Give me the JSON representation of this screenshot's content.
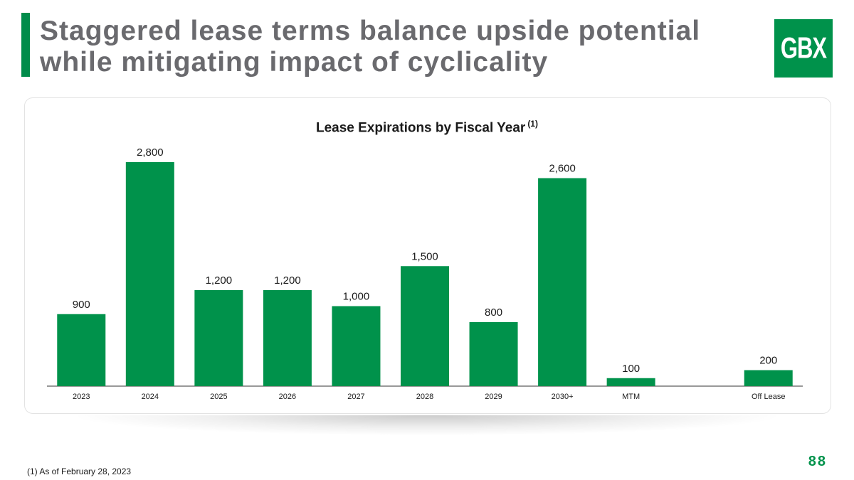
{
  "header": {
    "title_line1": "Staggered lease terms balance upside potential",
    "title_line2": "while mitigating impact of cyclicality",
    "logo_text": "GBX"
  },
  "colors": {
    "brand_green": "#00924b",
    "title_gray": "#6a6a6e"
  },
  "chart_data": {
    "type": "bar",
    "title": "Lease Expirations by Fiscal Year",
    "title_footnote_marker": "(1)",
    "categories": [
      "2023",
      "2024",
      "2025",
      "2026",
      "2027",
      "2028",
      "2029",
      "2030+",
      "MTM",
      "",
      "Off Lease"
    ],
    "values": [
      900,
      2800,
      1200,
      1200,
      1000,
      1500,
      800,
      2600,
      100,
      null,
      200
    ],
    "value_labels": [
      "900",
      "2,800",
      "1,200",
      "1,200",
      "1,000",
      "1,500",
      "800",
      "2,600",
      "100",
      "",
      "200"
    ],
    "xlabel": "",
    "ylabel": "",
    "ylim": [
      0,
      2800
    ],
    "grid": false,
    "legend": "none",
    "bar_color": "#00924b"
  },
  "footer": {
    "page_number": "88",
    "footnote": "(1) As of February 28, 2023"
  }
}
